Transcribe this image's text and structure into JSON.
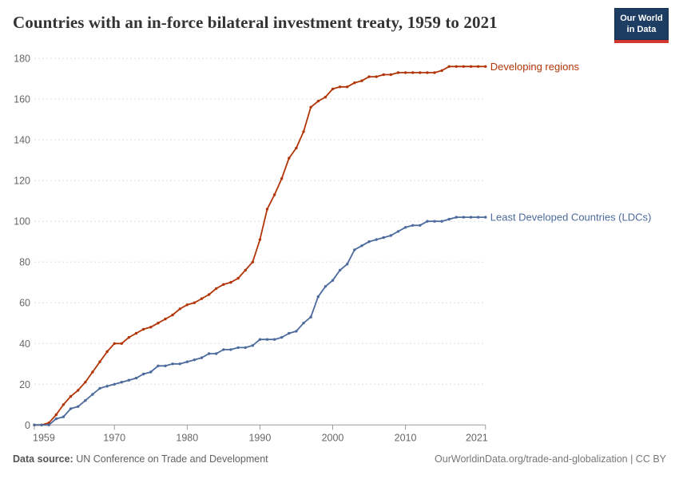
{
  "header": {
    "title": "Countries with an in-force bilateral investment treaty, 1959 to 2021",
    "logo": {
      "line1": "Our World",
      "line2": "in Data"
    }
  },
  "footer": {
    "source_label": "Data source:",
    "source_value": " UN Conference on Trade and Development",
    "attribution": "OurWorldinData.org/trade-and-globalization | CC BY"
  },
  "colors": {
    "developing_regions": "#B13507",
    "ldcs": "#4C6A9C",
    "gridline": "#dddddd",
    "axis": "#999999",
    "tick_label": "#666666",
    "logo_navy": "#1D3D63",
    "logo_red": "#D13830"
  },
  "chart_data": {
    "type": "line",
    "title": "Countries with an in-force bilateral investment treaty, 1959 to 2021",
    "xlabel": "",
    "ylabel": "",
    "xlim": [
      1959,
      2021
    ],
    "ylim": [
      0,
      180
    ],
    "x_ticks": [
      1959,
      1970,
      1980,
      1990,
      2000,
      2010,
      2021
    ],
    "y_ticks": [
      0,
      20,
      40,
      60,
      80,
      100,
      120,
      140,
      160,
      180
    ],
    "grid": "horizontal-dashed",
    "legend_position": "line-end-labels",
    "markers": true,
    "x": [
      1959,
      1960,
      1961,
      1962,
      1963,
      1964,
      1965,
      1966,
      1967,
      1968,
      1969,
      1970,
      1971,
      1972,
      1973,
      1974,
      1975,
      1976,
      1977,
      1978,
      1979,
      1980,
      1981,
      1982,
      1983,
      1984,
      1985,
      1986,
      1987,
      1988,
      1989,
      1990,
      1991,
      1992,
      1993,
      1994,
      1995,
      1996,
      1997,
      1998,
      1999,
      2000,
      2001,
      2002,
      2003,
      2004,
      2005,
      2006,
      2007,
      2008,
      2009,
      2010,
      2011,
      2012,
      2013,
      2014,
      2015,
      2016,
      2017,
      2018,
      2019,
      2020,
      2021
    ],
    "series": [
      {
        "name": "Developing regions",
        "color": "#B13507",
        "values": [
          0,
          0,
          1,
          5,
          10,
          14,
          17,
          21,
          26,
          31,
          36,
          40,
          40,
          43,
          45,
          47,
          48,
          50,
          52,
          54,
          57,
          59,
          60,
          62,
          64,
          67,
          69,
          70,
          72,
          76,
          80,
          91,
          106,
          113,
          121,
          131,
          136,
          144,
          156,
          159,
          161,
          165,
          166,
          166,
          168,
          169,
          171,
          171,
          172,
          172,
          173,
          173,
          173,
          173,
          173,
          173,
          174,
          176,
          176,
          176,
          176,
          176,
          176
        ]
      },
      {
        "name": "Least Developed Countries (LDCs)",
        "color": "#4C6A9C",
        "values": [
          0,
          0,
          0,
          3,
          4,
          8,
          9,
          12,
          15,
          18,
          19,
          20,
          21,
          22,
          23,
          25,
          26,
          29,
          29,
          30,
          30,
          31,
          32,
          33,
          35,
          35,
          37,
          37,
          38,
          38,
          39,
          42,
          42,
          42,
          43,
          45,
          46,
          50,
          53,
          63,
          68,
          71,
          76,
          79,
          86,
          88,
          90,
          91,
          92,
          93,
          95,
          97,
          98,
          98,
          100,
          100,
          100,
          101,
          102,
          102,
          102,
          102,
          102
        ]
      }
    ]
  }
}
